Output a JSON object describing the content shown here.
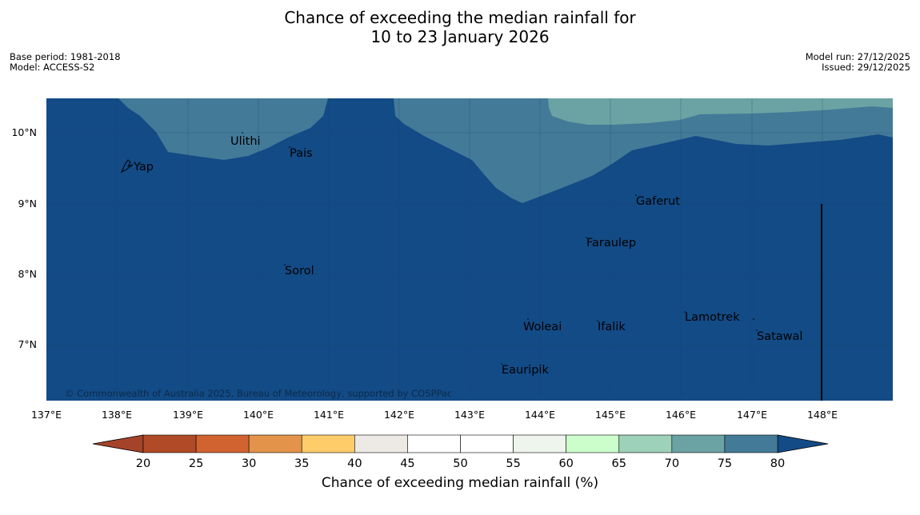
{
  "title": {
    "line1": "Chance of exceeding the median rainfall for",
    "line2": "10 to 23 January 2026"
  },
  "meta_left": {
    "base_period": "Base period: 1981-2018",
    "model": "Model: ACCESS-S2"
  },
  "meta_right": {
    "model_run": "Model run: 27/12/2025",
    "issued": "Issued: 29/12/2025"
  },
  "map": {
    "lat_labels": [
      "10°N",
      "9°N",
      "8°N",
      "7°N"
    ],
    "lon_labels": [
      "137°E",
      "138°E",
      "139°E",
      "140°E",
      "141°E",
      "142°E",
      "143°E",
      "144°E",
      "145°E",
      "146°E",
      "147°E",
      "148°E"
    ],
    "places": [
      "Yap",
      "Ulithi",
      "Pais",
      "Gaferut",
      "Faraulep",
      "Sorol",
      "Woleai",
      "Ifalik",
      "Lamotrek",
      "Satawal",
      "Eauripik"
    ],
    "copyright": "© Commonwealth of Australia 2025, Bureau of Meteorology, supported by COSPPac"
  },
  "colorbar": {
    "title": "Chance of exceeding median rainfall (%)",
    "ticks": [
      "20",
      "25",
      "30",
      "35",
      "40",
      "45",
      "50",
      "55",
      "60",
      "65",
      "70",
      "75",
      "80"
    ],
    "under_color": "#a5432a",
    "over_color": "#134b86",
    "colors": [
      "#b04a27",
      "#d06330",
      "#e3934a",
      "#fecd6a",
      "#ede9e4",
      "#ffffff",
      "#ffffff",
      "#edf5ec",
      "#ccfecc",
      "#9ed1b9",
      "#6ba2a3",
      "#437a98"
    ]
  },
  "colors": {
    "band_80": "#134b86",
    "band_75": "#437a98",
    "band_70": "#6ba2a3"
  }
}
